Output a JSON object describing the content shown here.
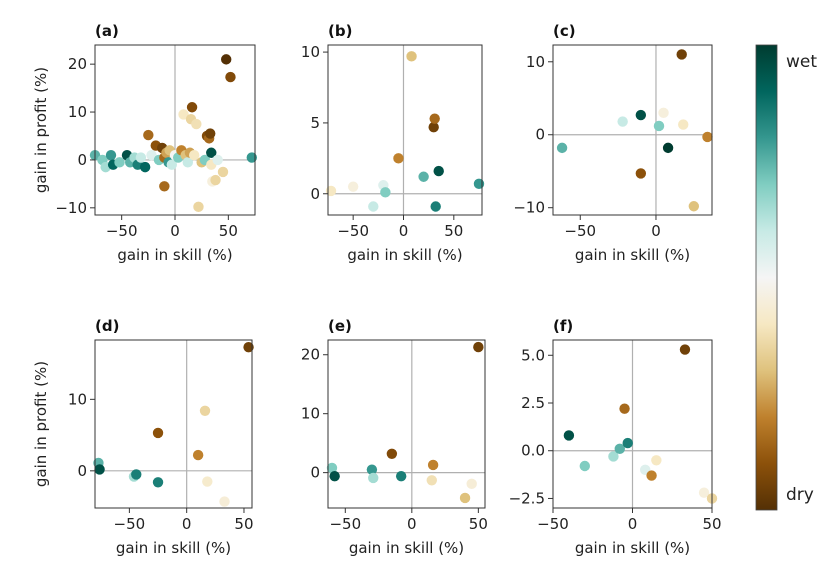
{
  "colorbar": {
    "top_label": "wet",
    "bottom_label": "dry",
    "stops": [
      "#003c30",
      "#01665e",
      "#35978f",
      "#80cdc1",
      "#c7eae5",
      "#f5f5f5",
      "#f6e8c3",
      "#dfc27d",
      "#bf812d",
      "#8c510a",
      "#543005"
    ]
  },
  "chart_data": [
    {
      "type": "scatter",
      "panel": "(a)",
      "xlabel": "gain in skill (%)",
      "ylabel": "gain in profit (%)",
      "xlim": [
        -75,
        75
      ],
      "ylim": [
        -11.5,
        24
      ],
      "xticks": [
        -50,
        0,
        50
      ],
      "yticks": [
        -10,
        0,
        10,
        20
      ],
      "xticklabels": [
        "−50",
        "0",
        "50"
      ],
      "yticklabels": [
        "−10",
        "0",
        "10",
        "20"
      ],
      "points": [
        {
          "x": -75,
          "y": 1,
          "c": 0.25
        },
        {
          "x": -68,
          "y": 0,
          "c": 0.3
        },
        {
          "x": -65,
          "y": -1.5,
          "c": 0.35
        },
        {
          "x": -60,
          "y": 1,
          "c": 0.2
        },
        {
          "x": -58,
          "y": -1,
          "c": 0.1
        },
        {
          "x": -52,
          "y": -0.5,
          "c": 0.3
        },
        {
          "x": -45,
          "y": 1,
          "c": 0.05
        },
        {
          "x": -42,
          "y": -0.5,
          "c": 0.25
        },
        {
          "x": -38,
          "y": 0.5,
          "c": 0.35
        },
        {
          "x": -35,
          "y": -1,
          "c": 0.15
        },
        {
          "x": -32,
          "y": 0.5,
          "c": 0.4
        },
        {
          "x": -28,
          "y": -1.5,
          "c": 0.1
        },
        {
          "x": -25,
          "y": 5.2,
          "c": 0.85
        },
        {
          "x": -22,
          "y": 1,
          "c": 0.45
        },
        {
          "x": -18,
          "y": 3,
          "c": 0.9
        },
        {
          "x": -15,
          "y": 0,
          "c": 0.3
        },
        {
          "x": -12,
          "y": 2.5,
          "c": 0.95
        },
        {
          "x": -10,
          "y": 0.5,
          "c": 0.85
        },
        {
          "x": -10,
          "y": -5.5,
          "c": 0.85
        },
        {
          "x": -8,
          "y": 1.5,
          "c": 0.75
        },
        {
          "x": -6,
          "y": -0.5,
          "c": 0.2
        },
        {
          "x": -5,
          "y": 2,
          "c": 0.7
        },
        {
          "x": -3,
          "y": -1,
          "c": 0.4
        },
        {
          "x": 0,
          "y": 1,
          "c": 0.5
        },
        {
          "x": 3,
          "y": 0.5,
          "c": 0.3
        },
        {
          "x": 6,
          "y": 2,
          "c": 0.8
        },
        {
          "x": 8,
          "y": 9.5,
          "c": 0.6
        },
        {
          "x": 10,
          "y": 1,
          "c": 0.7
        },
        {
          "x": 12,
          "y": -0.5,
          "c": 0.4
        },
        {
          "x": 14,
          "y": 1.5,
          "c": 0.75
        },
        {
          "x": 15,
          "y": 8.5,
          "c": 0.65
        },
        {
          "x": 16,
          "y": 11,
          "c": 0.92
        },
        {
          "x": 18,
          "y": 1,
          "c": 0.6
        },
        {
          "x": 20,
          "y": 7.5,
          "c": 0.62
        },
        {
          "x": 22,
          "y": -9.8,
          "c": 0.65
        },
        {
          "x": 25,
          "y": -0.5,
          "c": 0.7
        },
        {
          "x": 28,
          "y": 0,
          "c": 0.3
        },
        {
          "x": 30,
          "y": 5,
          "c": 0.92
        },
        {
          "x": 32,
          "y": 4.5,
          "c": 0.85
        },
        {
          "x": 33,
          "y": 5.5,
          "c": 0.95
        },
        {
          "x": 34,
          "y": 1.5,
          "c": 0.05
        },
        {
          "x": 34,
          "y": -1,
          "c": 0.6
        },
        {
          "x": 35,
          "y": -4.5,
          "c": 0.55
        },
        {
          "x": 38,
          "y": -4.2,
          "c": 0.65
        },
        {
          "x": 40,
          "y": 0,
          "c": 0.45
        },
        {
          "x": 45,
          "y": -2.5,
          "c": 0.65
        },
        {
          "x": 48,
          "y": 21,
          "c": 1.0
        },
        {
          "x": 52,
          "y": 17.3,
          "c": 0.92
        },
        {
          "x": 72,
          "y": 0.5,
          "c": 0.2
        }
      ]
    },
    {
      "type": "scatter",
      "panel": "(b)",
      "xlabel": "gain in skill (%)",
      "ylabel": "",
      "xlim": [
        -75,
        78
      ],
      "ylim": [
        -1.5,
        10.5
      ],
      "xticks": [
        -50,
        0,
        50
      ],
      "yticks": [
        0,
        5,
        10
      ],
      "xticklabels": [
        "−50",
        "0",
        "50"
      ],
      "yticklabels": [
        "0",
        "5",
        "10"
      ],
      "points": [
        {
          "x": -72,
          "y": 0.2,
          "c": 0.6
        },
        {
          "x": -50,
          "y": 0.5,
          "c": 0.55
        },
        {
          "x": -30,
          "y": -0.9,
          "c": 0.4
        },
        {
          "x": -20,
          "y": 0.6,
          "c": 0.45
        },
        {
          "x": -18,
          "y": 0.1,
          "c": 0.3
        },
        {
          "x": -5,
          "y": 2.5,
          "c": 0.8
        },
        {
          "x": 8,
          "y": 9.7,
          "c": 0.7
        },
        {
          "x": 20,
          "y": 1.2,
          "c": 0.25
        },
        {
          "x": 30,
          "y": 4.7,
          "c": 0.95
        },
        {
          "x": 31,
          "y": 5.3,
          "c": 0.85
        },
        {
          "x": 32,
          "y": -0.9,
          "c": 0.15
        },
        {
          "x": 35,
          "y": 1.6,
          "c": 0.05
        },
        {
          "x": 75,
          "y": 0.7,
          "c": 0.2
        }
      ]
    },
    {
      "type": "scatter",
      "panel": "(c)",
      "xlabel": "gain in skill (%)",
      "ylabel": "",
      "xlim": [
        -68,
        37
      ],
      "ylim": [
        -11,
        12.3
      ],
      "xticks": [
        -50,
        0
      ],
      "yticks": [
        -10,
        0,
        10
      ],
      "xticklabels": [
        "−50",
        "0"
      ],
      "yticklabels": [
        "−10",
        "0",
        "10"
      ],
      "points": [
        {
          "x": -62,
          "y": -1.8,
          "c": 0.25
        },
        {
          "x": -22,
          "y": 1.8,
          "c": 0.4
        },
        {
          "x": -10,
          "y": 2.7,
          "c": 0.05
        },
        {
          "x": -10,
          "y": -5.3,
          "c": 0.9
        },
        {
          "x": 2,
          "y": 1.2,
          "c": 0.3
        },
        {
          "x": 5,
          "y": 3,
          "c": 0.55
        },
        {
          "x": 8,
          "y": -1.8,
          "c": 0.0
        },
        {
          "x": 17,
          "y": 11,
          "c": 0.95
        },
        {
          "x": 18,
          "y": 1.4,
          "c": 0.6
        },
        {
          "x": 25,
          "y": -9.8,
          "c": 0.7
        },
        {
          "x": 34,
          "y": -0.3,
          "c": 0.8
        }
      ]
    },
    {
      "type": "scatter",
      "panel": "(d)",
      "xlabel": "gain in skill (%)",
      "ylabel": "gain in profit (%)",
      "xlim": [
        -80,
        57
      ],
      "ylim": [
        -5.2,
        18.3
      ],
      "xticks": [
        -50,
        0,
        50
      ],
      "yticks": [
        0,
        10
      ],
      "xticklabels": [
        "−50",
        "0",
        "50"
      ],
      "yticklabels": [
        "0",
        "10"
      ],
      "points": [
        {
          "x": -77,
          "y": 1.1,
          "c": 0.25
        },
        {
          "x": -76,
          "y": 0.2,
          "c": 0.05
        },
        {
          "x": -46,
          "y": -0.8,
          "c": 0.35
        },
        {
          "x": -44,
          "y": -0.5,
          "c": 0.15
        },
        {
          "x": -25,
          "y": -1.6,
          "c": 0.15
        },
        {
          "x": -25,
          "y": 5.3,
          "c": 0.9
        },
        {
          "x": 10,
          "y": 2.2,
          "c": 0.8
        },
        {
          "x": 16,
          "y": 8.4,
          "c": 0.65
        },
        {
          "x": 18,
          "y": -1.5,
          "c": 0.58
        },
        {
          "x": 33,
          "y": -4.3,
          "c": 0.56
        },
        {
          "x": 54,
          "y": 17.3,
          "c": 0.95
        }
      ]
    },
    {
      "type": "scatter",
      "panel": "(e)",
      "xlabel": "gain in skill (%)",
      "ylabel": "",
      "xlim": [
        -63,
        55
      ],
      "ylim": [
        -6,
        22.5
      ],
      "xticks": [
        -50,
        0,
        50
      ],
      "yticks": [
        0,
        10,
        20
      ],
      "xticklabels": [
        "−50",
        "0",
        "50"
      ],
      "yticklabels": [
        "0",
        "10",
        "20"
      ],
      "points": [
        {
          "x": -60,
          "y": 0.8,
          "c": 0.3
        },
        {
          "x": -58,
          "y": -0.6,
          "c": 0.05
        },
        {
          "x": -30,
          "y": 0.5,
          "c": 0.2
        },
        {
          "x": -29,
          "y": -0.9,
          "c": 0.35
        },
        {
          "x": -15,
          "y": 3.2,
          "c": 0.92
        },
        {
          "x": -8,
          "y": -0.6,
          "c": 0.15
        },
        {
          "x": 15,
          "y": -1.3,
          "c": 0.62
        },
        {
          "x": 16,
          "y": 1.3,
          "c": 0.8
        },
        {
          "x": 40,
          "y": -4.3,
          "c": 0.7
        },
        {
          "x": 45,
          "y": -1.9,
          "c": 0.56
        },
        {
          "x": 50,
          "y": 21.3,
          "c": 0.95
        }
      ]
    },
    {
      "type": "scatter",
      "panel": "(f)",
      "xlabel": "gain in skill (%)",
      "ylabel": "",
      "xlim": [
        -50,
        50
      ],
      "ylim": [
        -3,
        5.8
      ],
      "xticks": [
        -50,
        0,
        50
      ],
      "yticks": [
        -2.5,
        0,
        2.5,
        5
      ],
      "xticklabels": [
        "−50",
        "0",
        "50"
      ],
      "yticklabels": [
        "−2.5",
        "0.0",
        "2.5",
        "5.0"
      ],
      "points": [
        {
          "x": -40,
          "y": 0.8,
          "c": 0.05
        },
        {
          "x": -30,
          "y": -0.8,
          "c": 0.3
        },
        {
          "x": -12,
          "y": -0.3,
          "c": 0.35
        },
        {
          "x": -8,
          "y": 0.1,
          "c": 0.25
        },
        {
          "x": -5,
          "y": 2.2,
          "c": 0.85
        },
        {
          "x": -3,
          "y": 0.4,
          "c": 0.15
        },
        {
          "x": 8,
          "y": -1.0,
          "c": 0.45
        },
        {
          "x": 12,
          "y": -1.3,
          "c": 0.8
        },
        {
          "x": 15,
          "y": -0.5,
          "c": 0.6
        },
        {
          "x": 33,
          "y": 5.3,
          "c": 0.95
        },
        {
          "x": 45,
          "y": -2.2,
          "c": 0.55
        },
        {
          "x": 50,
          "y": -2.5,
          "c": 0.65
        }
      ]
    }
  ]
}
